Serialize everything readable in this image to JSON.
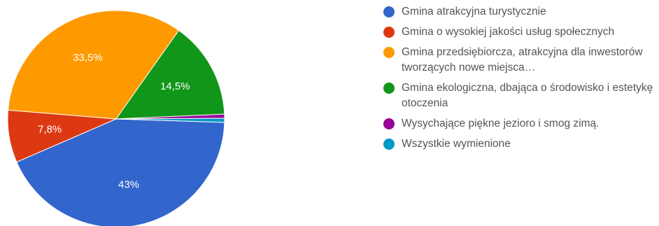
{
  "chart_data": {
    "type": "pie",
    "title": "",
    "slices": [
      {
        "label": "Gmina atrakcyjna turystycznie",
        "value": 43.0,
        "value_label": "43%",
        "color": "#3366cc"
      },
      {
        "label": "Gmina o wysokiej jakości usług społecznych",
        "value": 7.8,
        "value_label": "7,8%",
        "color": "#dc3912"
      },
      {
        "label": "Gmina przedsiębiorcza, atrakcyjna dla inwestorów tworzących nowe miejsca…",
        "value": 33.5,
        "value_label": "33,5%",
        "color": "#ff9900"
      },
      {
        "label": "Gmina ekologiczna, dbająca o środowisko i estetykę otoczenia",
        "value": 14.5,
        "value_label": "14,5%",
        "color": "#109618"
      },
      {
        "label": "Wysychające piękne jezioro i smog zimą.",
        "value": 0.6,
        "value_label": "",
        "color": "#990099"
      },
      {
        "label": "Wszystkie wymienione",
        "value": 0.6,
        "value_label": "",
        "color": "#0099c6"
      }
    ],
    "legend_position": "right"
  }
}
